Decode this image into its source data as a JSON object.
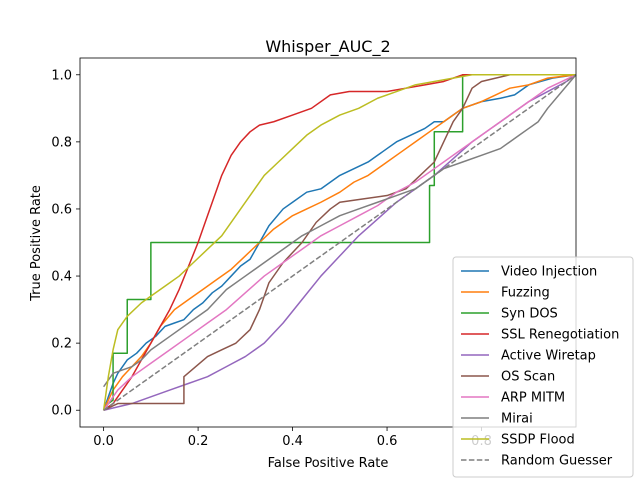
{
  "chart_data": {
    "type": "line",
    "title": "Whisper_AUC_2",
    "xlabel": "False Positive Rate",
    "ylabel": "True Positive Rate",
    "xlim": [
      -0.05,
      1.0
    ],
    "ylim": [
      -0.05,
      1.05
    ],
    "xticks": [
      "0.0",
      "0.2",
      "0.4",
      "0.6",
      "0.8"
    ],
    "yticks": [
      "0.0",
      "0.2",
      "0.4",
      "0.6",
      "0.8",
      "1.0"
    ],
    "legend_position": "lower-right",
    "grid": false,
    "series": [
      {
        "name": "Video Injection",
        "color": "#1f77b4",
        "x": [
          0.0,
          0.01,
          0.02,
          0.03,
          0.05,
          0.07,
          0.09,
          0.11,
          0.13,
          0.15,
          0.17,
          0.19,
          0.21,
          0.23,
          0.25,
          0.27,
          0.29,
          0.31,
          0.33,
          0.35,
          0.38,
          0.4,
          0.43,
          0.46,
          0.5,
          0.53,
          0.56,
          0.58,
          0.6,
          0.62,
          0.65,
          0.68,
          0.7,
          0.72,
          0.74,
          0.76,
          0.8,
          0.84,
          0.87,
          0.9,
          0.95,
          1.0
        ],
        "y": [
          0.0,
          0.04,
          0.08,
          0.11,
          0.15,
          0.17,
          0.2,
          0.22,
          0.25,
          0.26,
          0.27,
          0.3,
          0.32,
          0.35,
          0.37,
          0.4,
          0.43,
          0.45,
          0.5,
          0.55,
          0.6,
          0.62,
          0.65,
          0.66,
          0.7,
          0.72,
          0.74,
          0.76,
          0.78,
          0.8,
          0.82,
          0.84,
          0.86,
          0.86,
          0.88,
          0.9,
          0.92,
          0.93,
          0.94,
          0.97,
          0.99,
          1.0
        ]
      },
      {
        "name": "Fuzzing",
        "color": "#ff7f0e",
        "x": [
          0.0,
          0.02,
          0.04,
          0.06,
          0.08,
          0.1,
          0.12,
          0.15,
          0.18,
          0.21,
          0.24,
          0.27,
          0.3,
          0.33,
          0.36,
          0.4,
          0.43,
          0.46,
          0.5,
          0.53,
          0.56,
          0.6,
          0.63,
          0.66,
          0.7,
          0.73,
          0.76,
          0.8,
          0.83,
          0.86,
          0.9,
          0.94,
          1.0
        ],
        "y": [
          0.0,
          0.06,
          0.1,
          0.13,
          0.16,
          0.2,
          0.25,
          0.3,
          0.33,
          0.36,
          0.39,
          0.42,
          0.46,
          0.5,
          0.54,
          0.58,
          0.6,
          0.62,
          0.65,
          0.68,
          0.7,
          0.74,
          0.77,
          0.8,
          0.84,
          0.87,
          0.9,
          0.92,
          0.94,
          0.96,
          0.97,
          0.99,
          1.0
        ]
      },
      {
        "name": "Syn DOS",
        "color": "#2ca02c",
        "x": [
          0.0,
          0.01,
          0.02,
          0.02,
          0.05,
          0.05,
          0.1,
          0.1,
          0.69,
          0.69,
          0.7,
          0.7,
          0.76,
          0.76,
          0.95,
          0.95,
          1.0
        ],
        "y": [
          0.0,
          0.02,
          0.03,
          0.17,
          0.17,
          0.33,
          0.33,
          0.5,
          0.5,
          0.67,
          0.67,
          0.83,
          0.83,
          1.0,
          1.0,
          1.0,
          1.0
        ]
      },
      {
        "name": "SSL Renegotiation",
        "color": "#d62728",
        "x": [
          0.0,
          0.02,
          0.04,
          0.06,
          0.08,
          0.1,
          0.12,
          0.14,
          0.16,
          0.18,
          0.2,
          0.22,
          0.24,
          0.25,
          0.27,
          0.29,
          0.31,
          0.33,
          0.36,
          0.4,
          0.44,
          0.48,
          0.52,
          0.56,
          0.6,
          0.64,
          0.68,
          0.72,
          0.76,
          0.8,
          1.0
        ],
        "y": [
          0.0,
          0.02,
          0.06,
          0.1,
          0.15,
          0.2,
          0.25,
          0.3,
          0.36,
          0.43,
          0.5,
          0.58,
          0.66,
          0.7,
          0.76,
          0.8,
          0.83,
          0.85,
          0.86,
          0.88,
          0.9,
          0.94,
          0.95,
          0.95,
          0.95,
          0.96,
          0.97,
          0.98,
          1.0,
          1.0,
          1.0
        ]
      },
      {
        "name": "Active Wiretap",
        "color": "#9467bd",
        "x": [
          0.0,
          0.03,
          0.06,
          0.1,
          0.14,
          0.18,
          0.22,
          0.26,
          0.3,
          0.34,
          0.38,
          0.42,
          0.46,
          0.5,
          0.54,
          0.58,
          0.62,
          0.66,
          0.7,
          0.74,
          0.78,
          0.82,
          0.86,
          0.9,
          0.94,
          0.98,
          1.0
        ],
        "y": [
          0.0,
          0.01,
          0.02,
          0.04,
          0.06,
          0.08,
          0.1,
          0.13,
          0.16,
          0.2,
          0.26,
          0.33,
          0.4,
          0.46,
          0.52,
          0.57,
          0.62,
          0.66,
          0.7,
          0.75,
          0.8,
          0.84,
          0.88,
          0.92,
          0.95,
          0.98,
          1.0
        ]
      },
      {
        "name": "OS Scan",
        "color": "#8c564b",
        "x": [
          0.0,
          0.03,
          0.06,
          0.1,
          0.14,
          0.17,
          0.17,
          0.22,
          0.25,
          0.28,
          0.31,
          0.33,
          0.35,
          0.38,
          0.42,
          0.45,
          0.48,
          0.5,
          0.55,
          0.6,
          0.64,
          0.67,
          0.7,
          0.72,
          0.74,
          0.76,
          0.78,
          0.8,
          0.83,
          0.86,
          0.9,
          0.95,
          1.0
        ],
        "y": [
          0.0,
          0.02,
          0.02,
          0.02,
          0.02,
          0.02,
          0.1,
          0.16,
          0.18,
          0.2,
          0.24,
          0.3,
          0.38,
          0.44,
          0.5,
          0.56,
          0.6,
          0.62,
          0.63,
          0.64,
          0.66,
          0.7,
          0.74,
          0.8,
          0.86,
          0.9,
          0.96,
          0.98,
          0.99,
          1.0,
          1.0,
          1.0,
          1.0
        ]
      },
      {
        "name": "ARP MITM",
        "color": "#e377c2",
        "x": [
          0.0,
          0.03,
          0.06,
          0.1,
          0.14,
          0.18,
          0.22,
          0.26,
          0.3,
          0.34,
          0.38,
          0.42,
          0.46,
          0.5,
          0.54,
          0.58,
          0.62,
          0.66,
          0.7,
          0.74,
          0.78,
          0.82,
          0.86,
          0.9,
          0.94,
          1.0
        ],
        "y": [
          0.0,
          0.06,
          0.1,
          0.14,
          0.18,
          0.22,
          0.26,
          0.3,
          0.35,
          0.4,
          0.44,
          0.48,
          0.52,
          0.55,
          0.58,
          0.61,
          0.65,
          0.68,
          0.72,
          0.76,
          0.8,
          0.84,
          0.88,
          0.92,
          0.96,
          1.0
        ]
      },
      {
        "name": "Mirai",
        "color": "#7f7f7f",
        "x": [
          0.0,
          0.01,
          0.02,
          0.04,
          0.06,
          0.08,
          0.1,
          0.14,
          0.18,
          0.22,
          0.26,
          0.3,
          0.34,
          0.38,
          0.42,
          0.46,
          0.5,
          0.54,
          0.58,
          0.62,
          0.66,
          0.7,
          0.72,
          0.76,
          0.8,
          0.84,
          0.86,
          0.88,
          0.9,
          0.92,
          0.94,
          1.0
        ],
        "y": [
          0.07,
          0.09,
          0.11,
          0.12,
          0.13,
          0.15,
          0.18,
          0.22,
          0.26,
          0.3,
          0.36,
          0.4,
          0.44,
          0.48,
          0.52,
          0.55,
          0.58,
          0.6,
          0.62,
          0.64,
          0.66,
          0.7,
          0.72,
          0.74,
          0.76,
          0.78,
          0.8,
          0.82,
          0.84,
          0.86,
          0.9,
          1.0
        ]
      },
      {
        "name": "SSDP Flood",
        "color": "#bcbd22",
        "x": [
          0.0,
          0.01,
          0.02,
          0.03,
          0.05,
          0.08,
          0.1,
          0.13,
          0.16,
          0.19,
          0.22,
          0.25,
          0.28,
          0.31,
          0.34,
          0.37,
          0.4,
          0.43,
          0.46,
          0.5,
          0.54,
          0.58,
          0.62,
          0.66,
          0.7,
          0.74,
          0.78,
          0.82,
          0.86,
          0.9,
          0.95,
          1.0
        ],
        "y": [
          0.0,
          0.1,
          0.18,
          0.24,
          0.28,
          0.32,
          0.34,
          0.37,
          0.4,
          0.44,
          0.48,
          0.52,
          0.58,
          0.64,
          0.7,
          0.74,
          0.78,
          0.82,
          0.85,
          0.88,
          0.9,
          0.93,
          0.95,
          0.97,
          0.98,
          0.99,
          1.0,
          1.0,
          1.0,
          1.0,
          1.0,
          1.0
        ]
      },
      {
        "name": "Random Guesser",
        "color": "#7f7f7f",
        "dashed": true,
        "x": [
          0.0,
          1.0
        ],
        "y": [
          0.0,
          1.0
        ]
      }
    ]
  }
}
